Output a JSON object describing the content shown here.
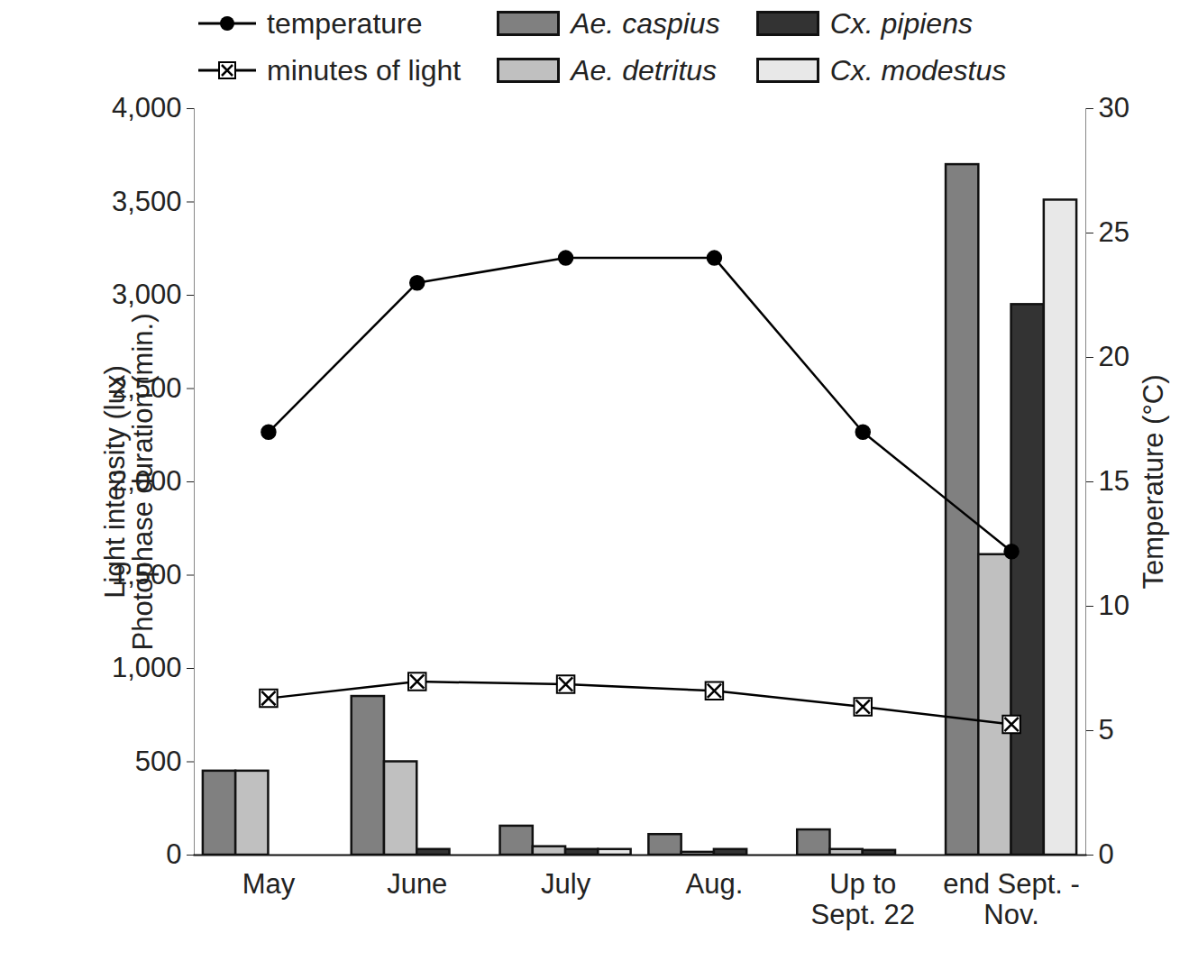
{
  "chart_data": {
    "type": "bar",
    "categories": [
      "May",
      "June",
      "July",
      "Aug.",
      "Up to\nSept. 22",
      "end Sept. -\nNov."
    ],
    "series": [
      {
        "name": "Ae. caspius",
        "color": "#808080",
        "values": [
          450,
          850,
          155,
          110,
          135,
          3700
        ]
      },
      {
        "name": "Ae. detritus",
        "color": "#c0c0c0",
        "values": [
          450,
          500,
          45,
          15,
          30,
          1610
        ]
      },
      {
        "name": "Cx. pipiens",
        "color": "#333333",
        "values": [
          0,
          30,
          30,
          30,
          25,
          2950
        ]
      },
      {
        "name": "Cx. modestus",
        "color": "#e8e8e8",
        "values": [
          0,
          0,
          30,
          0,
          0,
          3510
        ]
      },
      {
        "name": "temperature",
        "type": "line",
        "axis": "y2",
        "color": "#000000",
        "marker": "circle",
        "values": [
          17,
          23,
          24,
          24,
          17,
          12.2
        ]
      },
      {
        "name": "minutes of light",
        "type": "line",
        "color": "#000000",
        "marker": "square-x",
        "values": [
          840,
          930,
          915,
          880,
          795,
          700
        ]
      }
    ],
    "y_label": "Light intensity (lux)\nPhotophase duration (min.)",
    "y2_label": "Temperature (°C)",
    "ylim": [
      0,
      4000
    ],
    "yticks": [
      0,
      500,
      1000,
      1500,
      2000,
      2500,
      3000,
      3500,
      4000
    ],
    "y2lim": [
      0,
      30
    ],
    "y2ticks": [
      0,
      5,
      10,
      15,
      20,
      25,
      30
    ],
    "grid": false,
    "legend": "top"
  }
}
